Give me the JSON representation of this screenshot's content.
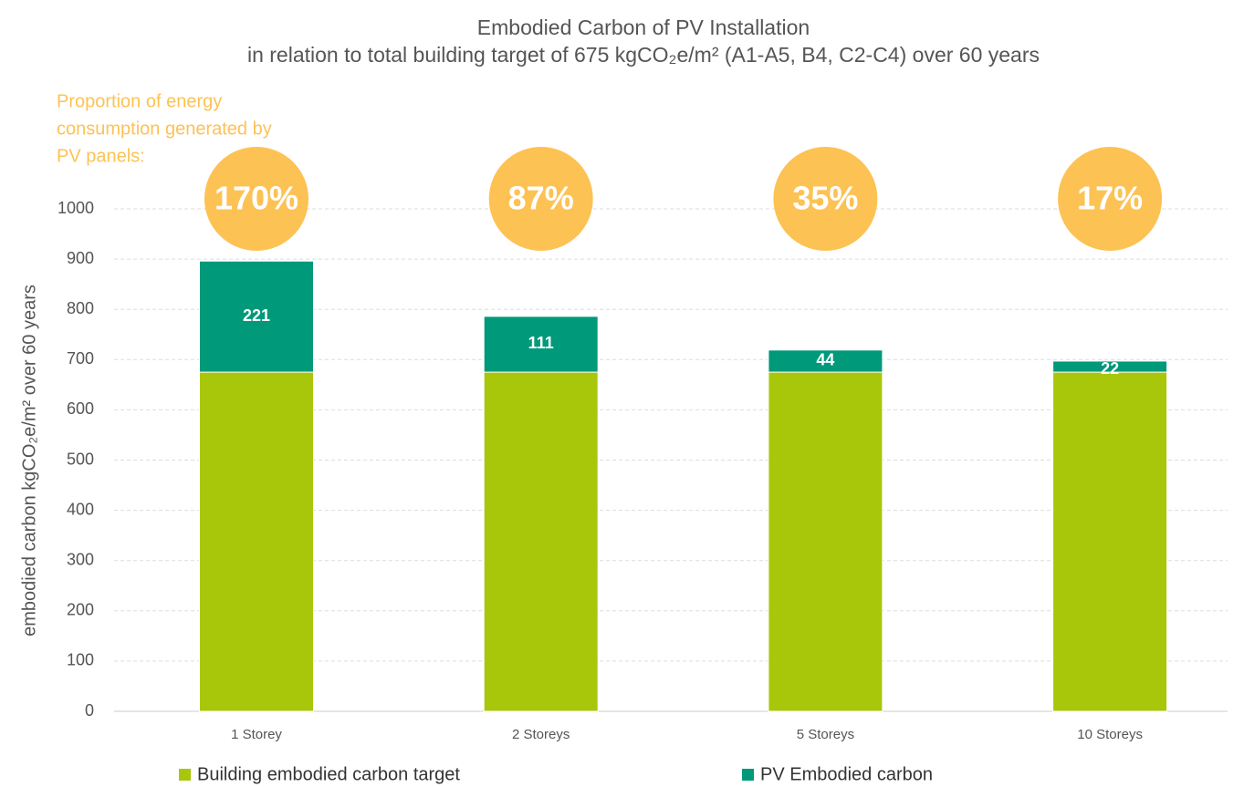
{
  "chart_data": {
    "type": "stacked_bar",
    "title": "Embodied Carbon of PV Installation",
    "subtitle": "in relation to total building target of 675 kgCO₂e/m² (A1-A5, B4, C2-C4) over 60 years",
    "y_label": "embodied carbon kgCO₂e/m² over 60 years",
    "annotation": [
      "Proportion of energy",
      "consumption generated by",
      "PV panels:"
    ],
    "proportions": {
      "values": [
        170,
        87,
        35,
        17
      ],
      "value_labels": [
        "170%",
        "87%",
        "35%",
        "17%"
      ],
      "color": "#fdc254"
    },
    "categories": [
      "1 Storey",
      "2 Storeys",
      "5 Storeys",
      "10 Storeys"
    ],
    "series": [
      {
        "name": "Building embodied carbon target",
        "color": "#a8c70a",
        "values": [
          675,
          675,
          675,
          675
        ]
      },
      {
        "name": "PV Embodied carbon",
        "color": "#00997a",
        "values": [
          221,
          111,
          44,
          22
        ]
      }
    ],
    "ylim": [
      0,
      1000
    ],
    "yticks": [
      0,
      100,
      200,
      300,
      400,
      500,
      600,
      700,
      800,
      900,
      1000
    ],
    "grid": true
  }
}
